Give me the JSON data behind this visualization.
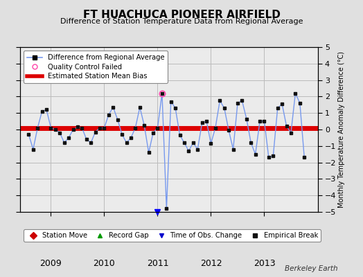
{
  "title": "FT HUACHUCA PIONEER AIRFIELD",
  "subtitle": "Difference of Station Temperature Data from Regional Average",
  "ylabel": "Monthly Temperature Anomaly Difference (°C)",
  "ylim": [
    -5,
    5
  ],
  "bias": 0.1,
  "background_color": "#e0e0e0",
  "plot_bg_color": "#ebebeb",
  "time_of_obs_change_x": 2011.0,
  "qc_failed_x": 2011.0,
  "qc_failed_y": 2.2,
  "spike_bottom": -4.8,
  "months": [
    2008.583,
    2008.667,
    2008.75,
    2008.833,
    2008.917,
    2009.0,
    2009.083,
    2009.167,
    2009.25,
    2009.333,
    2009.417,
    2009.5,
    2009.583,
    2009.667,
    2009.75,
    2009.833,
    2009.917,
    2010.0,
    2010.083,
    2010.167,
    2010.25,
    2010.333,
    2010.417,
    2010.5,
    2010.583,
    2010.667,
    2010.75,
    2010.833,
    2010.917,
    2011.0,
    2011.083,
    2011.167,
    2011.25,
    2011.333,
    2011.417,
    2011.5,
    2011.583,
    2011.667,
    2011.75,
    2011.833,
    2011.917,
    2012.0,
    2012.083,
    2012.167,
    2012.25,
    2012.333,
    2012.417,
    2012.5,
    2012.583,
    2012.667,
    2012.75,
    2012.833,
    2012.917,
    2013.0,
    2013.083,
    2013.167,
    2013.25,
    2013.333,
    2013.417,
    2013.5,
    2013.583,
    2013.667,
    2013.75
  ],
  "values": [
    -0.3,
    -1.2,
    0.1,
    1.1,
    1.2,
    0.1,
    0.0,
    -0.2,
    -0.8,
    -0.5,
    0.0,
    0.15,
    0.1,
    -0.6,
    -0.8,
    -0.15,
    0.1,
    0.1,
    0.9,
    1.35,
    0.6,
    -0.3,
    -0.8,
    -0.5,
    0.1,
    1.35,
    0.25,
    -1.4,
    -0.2,
    0.1,
    2.2,
    -4.8,
    1.7,
    1.3,
    -0.35,
    -0.8,
    -1.3,
    -0.8,
    -1.2,
    0.4,
    0.5,
    -0.85,
    0.1,
    1.75,
    1.3,
    -0.05,
    -1.2,
    1.6,
    1.75,
    0.65,
    -0.8,
    -1.5,
    0.5,
    0.5,
    -1.7,
    -1.6,
    1.3,
    1.55,
    0.2,
    -0.2,
    2.2,
    1.6,
    -1.7
  ],
  "line_color": "#7799ee",
  "marker_color": "#111111",
  "bias_color": "#dd0000",
  "xticks": [
    2009,
    2010,
    2011,
    2012,
    2013
  ],
  "xlim": [
    2008.42,
    2014.0
  ],
  "grid_color": "#bbbbbb",
  "footer": "Berkeley Earth"
}
